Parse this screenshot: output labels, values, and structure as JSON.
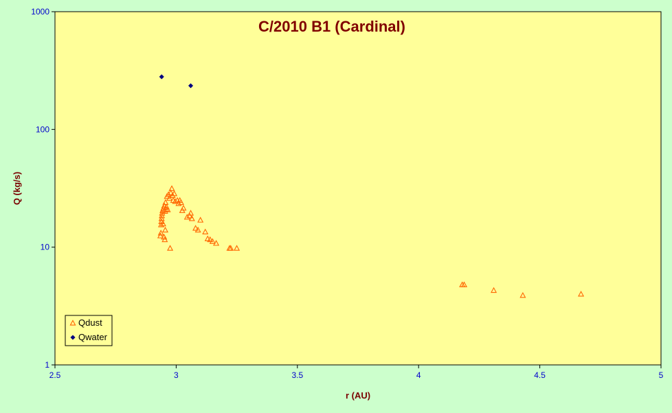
{
  "chart_data": {
    "type": "scatter",
    "title": "C/2010 B1 (Cardinal)",
    "xlabel": "r (AU)",
    "ylabel": "Q (kg/s)",
    "xlim": [
      2.5,
      5
    ],
    "ylim": [
      1,
      1000
    ],
    "yscale": "log",
    "grid": false,
    "legend_position": "bottom-left",
    "x_ticks": [
      "2.5",
      "3",
      "3.5",
      "4",
      "4.5",
      "5"
    ],
    "y_ticks": [
      "1",
      "10",
      "100",
      "1000"
    ],
    "colors": {
      "plot_background": "#ffff99",
      "page_background": "#ccffcc",
      "qdust": "#ff6600",
      "qwater": "#000080",
      "title": "#800000",
      "tick_labels": "#0000cc"
    },
    "series": [
      {
        "name": "Qdust",
        "marker": "triangle",
        "points": [
          [
            2.935,
            12.5
          ],
          [
            2.937,
            13.2
          ],
          [
            2.938,
            15.5
          ],
          [
            2.939,
            16.5
          ],
          [
            2.94,
            17.5
          ],
          [
            2.941,
            18.5
          ],
          [
            2.942,
            19.5
          ],
          [
            2.944,
            20.5
          ],
          [
            2.946,
            15.8
          ],
          [
            2.948,
            21.5
          ],
          [
            2.95,
            12.2
          ],
          [
            2.951,
            22.5
          ],
          [
            2.953,
            11.6
          ],
          [
            2.954,
            20.2
          ],
          [
            2.955,
            14.0
          ],
          [
            2.956,
            24.0
          ],
          [
            2.958,
            21.0
          ],
          [
            2.96,
            22.0
          ],
          [
            2.962,
            27.0
          ],
          [
            2.965,
            20.8
          ],
          [
            2.968,
            28.0
          ],
          [
            2.972,
            26.0
          ],
          [
            2.975,
            9.8
          ],
          [
            2.978,
            29.0
          ],
          [
            2.982,
            31.5
          ],
          [
            2.985,
            27.5
          ],
          [
            2.988,
            25.0
          ],
          [
            2.992,
            28.5
          ],
          [
            2.996,
            24.5
          ],
          [
            3.005,
            25.0
          ],
          [
            3.01,
            23.5
          ],
          [
            3.015,
            25.0
          ],
          [
            3.02,
            24.0
          ],
          [
            3.025,
            20.5
          ],
          [
            3.03,
            21.5
          ],
          [
            3.045,
            18.0
          ],
          [
            3.055,
            18.5
          ],
          [
            3.06,
            19.5
          ],
          [
            3.065,
            17.5
          ],
          [
            3.08,
            14.5
          ],
          [
            3.09,
            14.0
          ],
          [
            3.1,
            17.0
          ],
          [
            3.12,
            13.5
          ],
          [
            3.13,
            11.8
          ],
          [
            3.14,
            11.6
          ],
          [
            3.15,
            11.2
          ],
          [
            3.165,
            10.8
          ],
          [
            3.22,
            9.8
          ],
          [
            3.225,
            9.8
          ],
          [
            3.25,
            9.8
          ],
          [
            4.18,
            4.8
          ],
          [
            4.188,
            4.8
          ],
          [
            4.31,
            4.3
          ],
          [
            4.43,
            3.9
          ],
          [
            4.67,
            4.0
          ]
        ]
      },
      {
        "name": "Qwater",
        "marker": "diamond",
        "points": [
          [
            2.94,
            280
          ],
          [
            3.06,
            235
          ]
        ]
      }
    ]
  }
}
